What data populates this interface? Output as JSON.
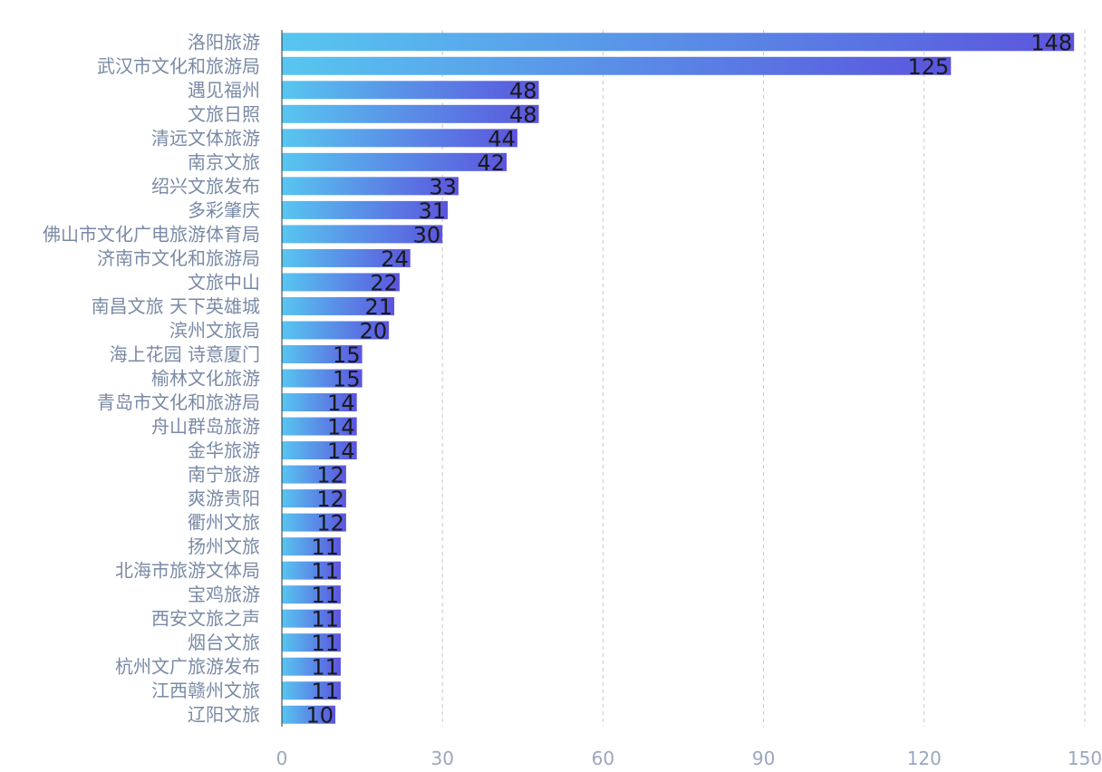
{
  "chart_data": {
    "type": "bar",
    "orientation": "horizontal",
    "categories": [
      "洛阳旅游",
      "武汉市文化和旅游局",
      "遇见福州",
      "文旅日照",
      "清远文体旅游",
      "南京文旅",
      "绍兴文旅发布",
      "多彩肇庆",
      "佛山市文化广电旅游体育局",
      "济南市文化和旅游局",
      "文旅中山",
      "南昌文旅 天下英雄城",
      "滨州文旅局",
      "海上花园 诗意厦门",
      "榆林文化旅游",
      "青岛市文化和旅游局",
      "舟山群岛旅游",
      "金华旅游",
      "南宁旅游",
      "爽游贵阳",
      "衢州文旅",
      "扬州文旅",
      "北海市旅游文体局",
      "宝鸡旅游",
      "西安文旅之声",
      "烟台文旅",
      "杭州文广旅游发布",
      "江西赣州文旅",
      "辽阳文旅"
    ],
    "values": [
      148,
      125,
      48,
      48,
      44,
      42,
      33,
      31,
      30,
      24,
      22,
      21,
      20,
      15,
      15,
      14,
      14,
      14,
      12,
      12,
      12,
      11,
      11,
      11,
      11,
      11,
      11,
      11,
      10
    ],
    "xlim": [
      0,
      150
    ],
    "xticks": [
      0,
      30,
      60,
      90,
      120,
      150
    ],
    "grid": true,
    "colors": {
      "gradient_start": "#58c6f0",
      "gradient_end": "#5b55dd",
      "label": "#7a8aa6",
      "tick": "#9aa7be",
      "value": "#1a1a1a"
    }
  }
}
